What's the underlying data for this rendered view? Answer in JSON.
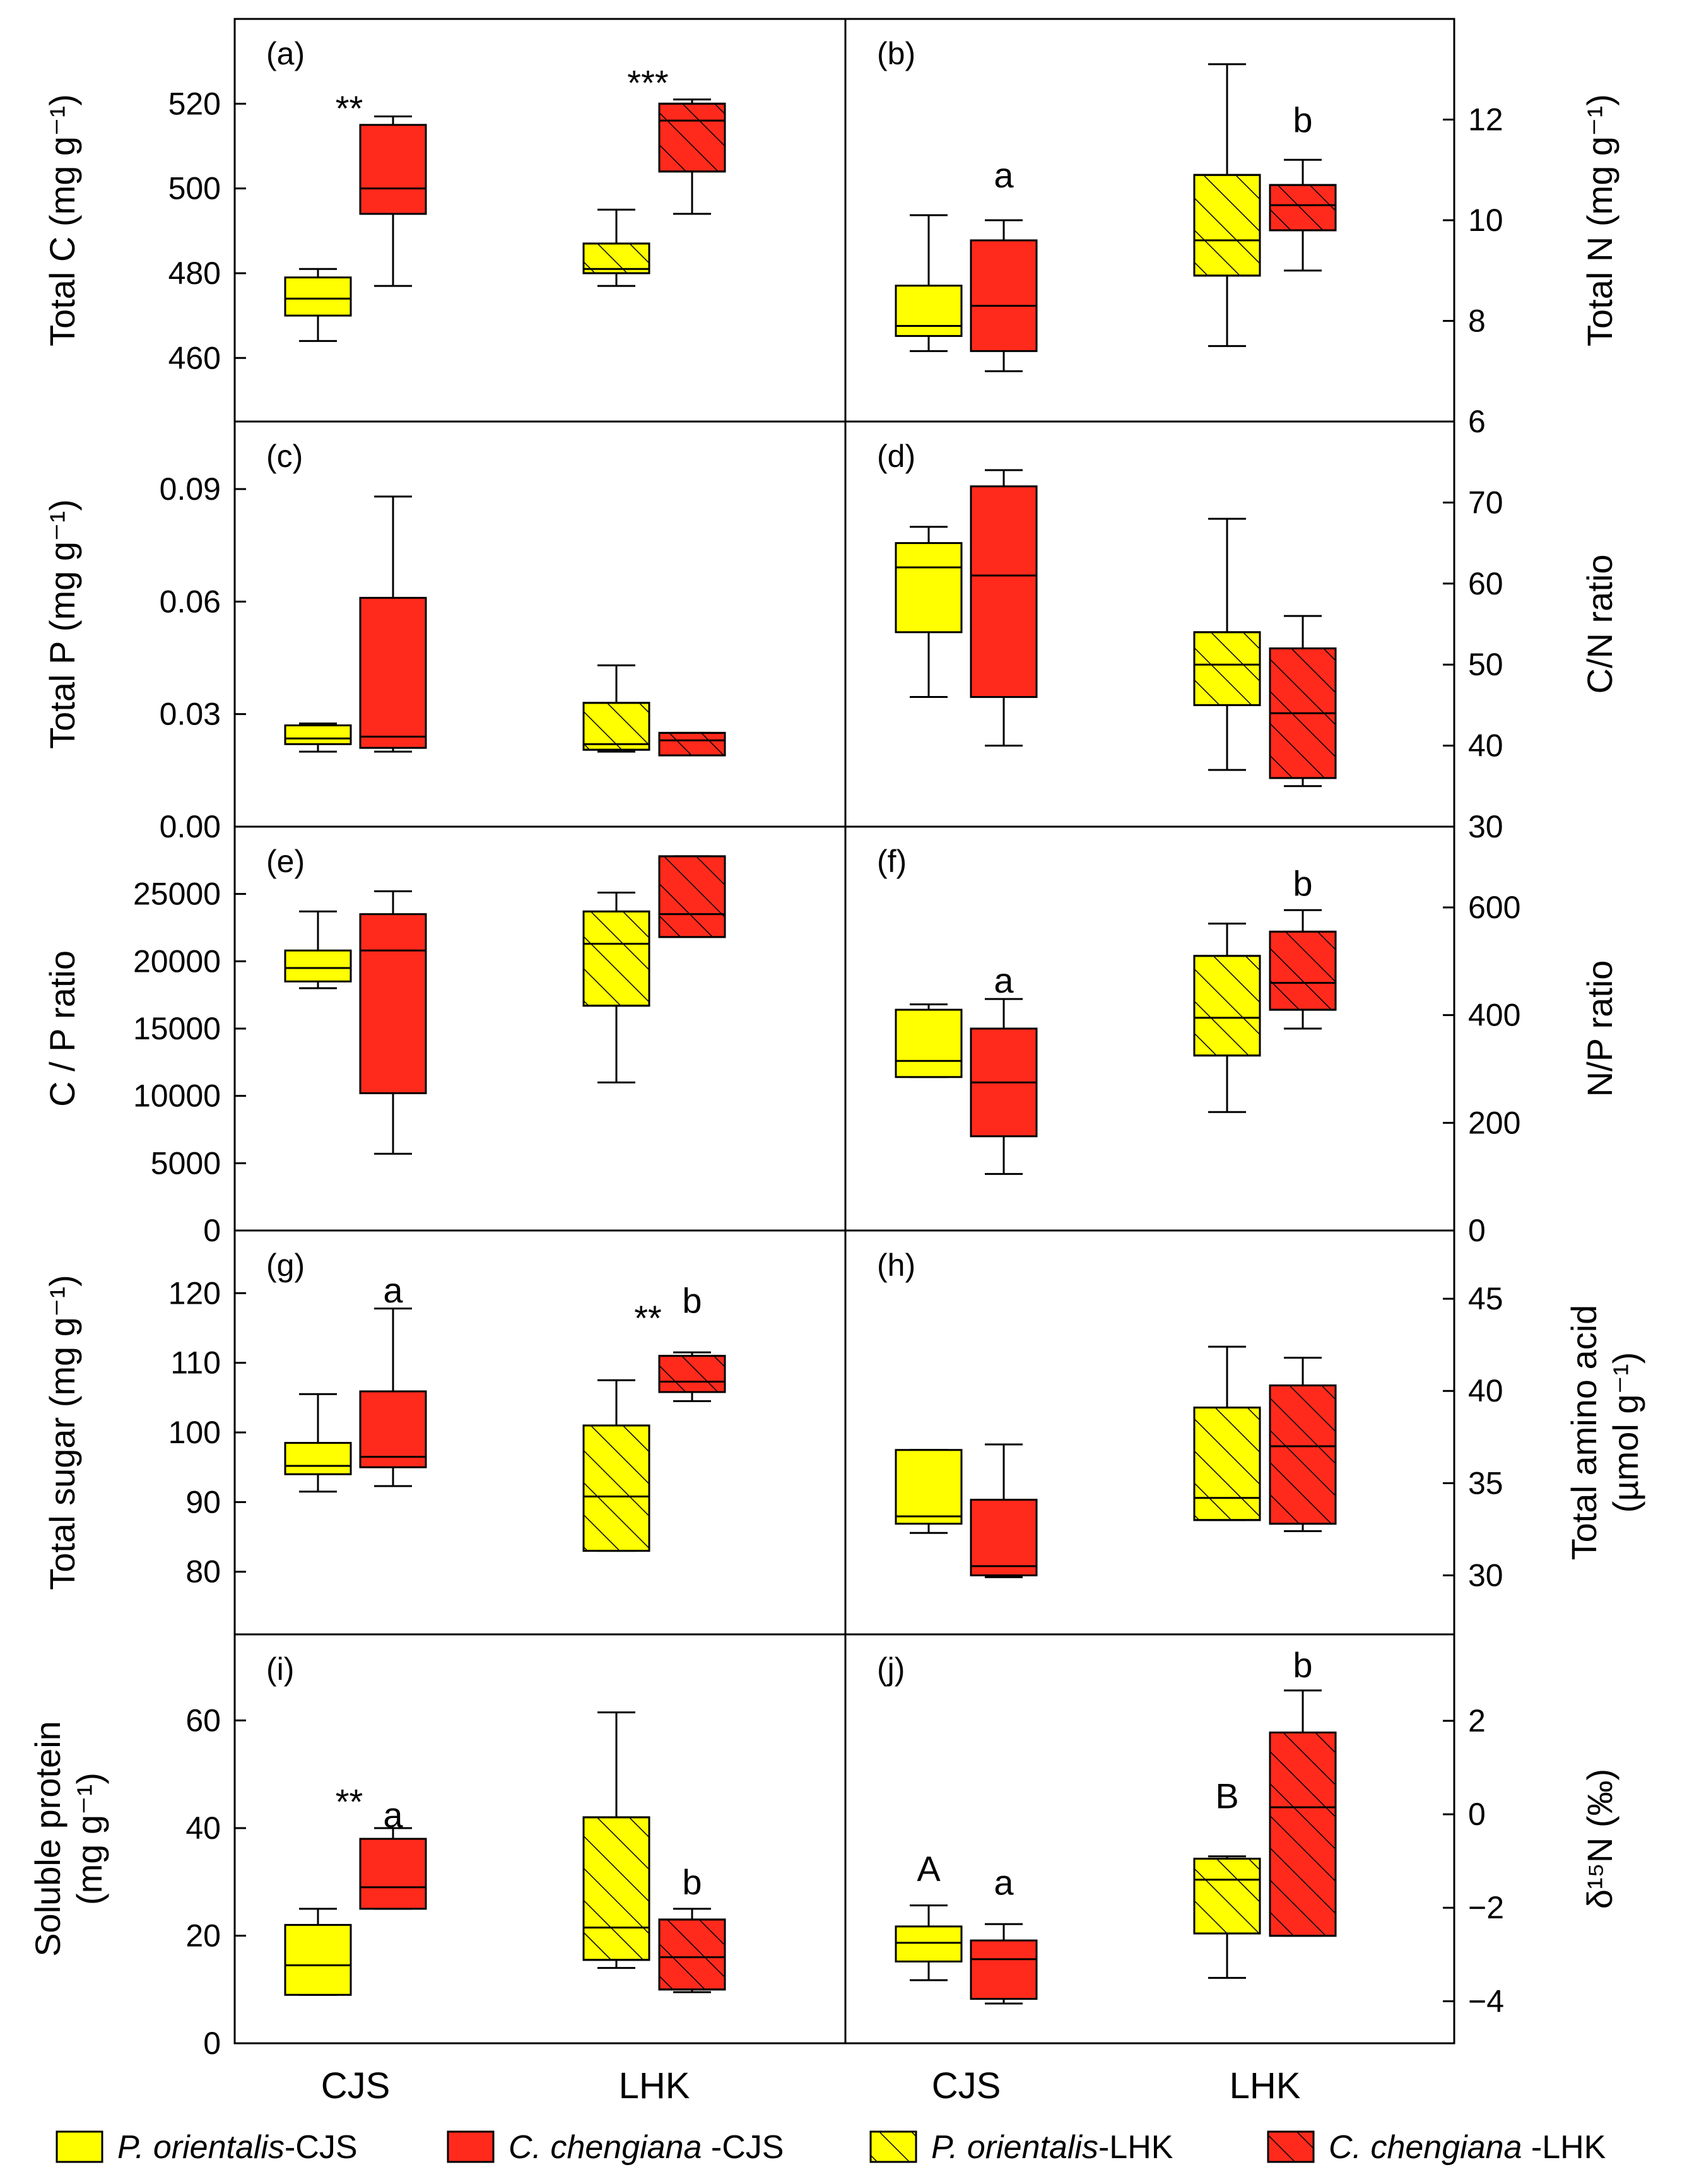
{
  "chart_data": {
    "type": "box",
    "groups": [
      "CJS",
      "LHK"
    ],
    "colors": {
      "P. orientalis": "#ffff00",
      "C. chengiana": "#ff2a1c",
      "outline": "#000000"
    },
    "legend": {
      "entries": [
        {
          "italic": "P. orientalis",
          "suffix": "-CJS",
          "color": "#ffff00",
          "hatched": false
        },
        {
          "italic": "C. chengiana ",
          "suffix": "-CJS",
          "color": "#ff2a1c",
          "hatched": false
        },
        {
          "italic": "P. orientalis",
          "suffix": "-LHK",
          "color": "#ffff00",
          "hatched": true
        },
        {
          "italic": "C. chengiana ",
          "suffix": "-LHK",
          "color": "#ff2a1c",
          "hatched": true
        }
      ]
    },
    "panels": [
      {
        "id": "a",
        "label": "(a)",
        "axis_side": "left",
        "ylabel_lines": [
          "Total C  (mg g⁻¹)"
        ],
        "ylim": [
          445,
          540
        ],
        "ticks": [
          460,
          480,
          500,
          520
        ],
        "boxes": [
          {
            "species": "P. orientalis",
            "site": "CJS",
            "min": 464,
            "q1": 470,
            "median": 474,
            "q3": 479,
            "max": 481
          },
          {
            "species": "C. chengiana",
            "site": "CJS",
            "min": 477,
            "q1": 494,
            "median": 500,
            "q3": 515,
            "max": 517
          },
          {
            "species": "P. orientalis",
            "site": "LHK",
            "min": 477,
            "q1": 480,
            "median": 481,
            "q3": 487,
            "max": 495
          },
          {
            "species": "C. chengiana",
            "site": "LHK",
            "min": 494,
            "q1": 504,
            "median": 516,
            "q3": 520,
            "max": 521
          }
        ],
        "annotations": [
          {
            "text": "**",
            "at": "pair",
            "site": "CJS",
            "value": 519
          },
          {
            "text": "***",
            "at": "pair",
            "site": "LHK",
            "value": 525
          }
        ]
      },
      {
        "id": "b",
        "label": "(b)",
        "axis_side": "right",
        "ylabel_lines": [
          "Total N  (mg g⁻¹)"
        ],
        "ylim": [
          6,
          14
        ],
        "ticks": [
          6,
          8,
          10,
          12
        ],
        "boxes": [
          {
            "species": "P. orientalis",
            "site": "CJS",
            "min": 7.4,
            "q1": 7.7,
            "median": 7.9,
            "q3": 8.7,
            "max": 10.1
          },
          {
            "species": "C. chengiana",
            "site": "CJS",
            "min": 7.0,
            "q1": 7.4,
            "median": 8.3,
            "q3": 9.6,
            "max": 10.0
          },
          {
            "species": "P. orientalis",
            "site": "LHK",
            "min": 7.5,
            "q1": 8.9,
            "median": 9.6,
            "q3": 10.9,
            "max": 13.1
          },
          {
            "species": "C. chengiana",
            "site": "LHK",
            "min": 9.0,
            "q1": 9.8,
            "median": 10.3,
            "q3": 10.7,
            "max": 11.2
          }
        ],
        "annotations": [
          {
            "text": "a",
            "at": "box",
            "index": 1,
            "value": 10.9
          },
          {
            "text": "b",
            "at": "box",
            "index": 3,
            "value": 12.0
          }
        ]
      },
      {
        "id": "c",
        "label": "(c)",
        "axis_side": "left",
        "ylabel_lines": [
          "Total P  (mg g⁻¹)"
        ],
        "ylim": [
          0,
          0.108
        ],
        "ticks": [
          0.0,
          0.03,
          0.06,
          0.09
        ],
        "tick_decimals": 2,
        "boxes": [
          {
            "species": "P. orientalis",
            "site": "CJS",
            "min": 0.02,
            "q1": 0.022,
            "median": 0.0235,
            "q3": 0.027,
            "max": 0.0275
          },
          {
            "species": "C. chengiana",
            "site": "CJS",
            "min": 0.02,
            "q1": 0.021,
            "median": 0.024,
            "q3": 0.061,
            "max": 0.088
          },
          {
            "species": "P. orientalis",
            "site": "LHK",
            "min": 0.02,
            "q1": 0.0205,
            "median": 0.022,
            "q3": 0.033,
            "max": 0.043
          },
          {
            "species": "C. chengiana",
            "site": "LHK",
            "min": 0.019,
            "q1": 0.019,
            "median": 0.023,
            "q3": 0.025,
            "max": 0.025
          }
        ],
        "annotations": []
      },
      {
        "id": "d",
        "label": "(d)",
        "axis_side": "right",
        "ylabel_lines": [
          "C/N ratio"
        ],
        "ylim": [
          30,
          80
        ],
        "ticks": [
          30,
          40,
          50,
          60,
          70
        ],
        "boxes": [
          {
            "species": "P. orientalis",
            "site": "CJS",
            "min": 46,
            "q1": 54,
            "median": 62,
            "q3": 65,
            "max": 67
          },
          {
            "species": "C. chengiana",
            "site": "CJS",
            "min": 40,
            "q1": 46,
            "median": 61,
            "q3": 72,
            "max": 74
          },
          {
            "species": "P. orientalis",
            "site": "LHK",
            "min": 37,
            "q1": 45,
            "median": 50,
            "q3": 54,
            "max": 68
          },
          {
            "species": "C. chengiana",
            "site": "LHK",
            "min": 35,
            "q1": 36,
            "median": 44,
            "q3": 52,
            "max": 56
          }
        ],
        "annotations": []
      },
      {
        "id": "e",
        "label": "(e)",
        "axis_side": "left",
        "ylabel_lines": [
          "C / P ratio"
        ],
        "ylim": [
          0,
          30000
        ],
        "ticks": [
          0,
          5000,
          10000,
          15000,
          20000,
          25000
        ],
        "boxes": [
          {
            "species": "P. orientalis",
            "site": "CJS",
            "min": 18000,
            "q1": 18500,
            "median": 19500,
            "q3": 20800,
            "max": 23700
          },
          {
            "species": "C. chengiana",
            "site": "CJS",
            "min": 5700,
            "q1": 10200,
            "median": 20800,
            "q3": 23500,
            "max": 25200
          },
          {
            "species": "P. orientalis",
            "site": "LHK",
            "min": 11000,
            "q1": 16700,
            "median": 21300,
            "q3": 23700,
            "max": 25100
          },
          {
            "species": "C. chengiana",
            "site": "LHK",
            "min": 21800,
            "q1": 21800,
            "median": 23500,
            "q3": 27800,
            "max": 27800
          }
        ],
        "annotations": []
      },
      {
        "id": "f",
        "label": "(f)",
        "axis_side": "right",
        "ylabel_lines": [
          "N/P ratio"
        ],
        "ylim": [
          0,
          750
        ],
        "ticks": [
          0,
          200,
          400,
          600
        ],
        "boxes": [
          {
            "species": "P. orientalis",
            "site": "CJS",
            "min": 285,
            "q1": 285,
            "median": 315,
            "q3": 410,
            "max": 420
          },
          {
            "species": "C. chengiana",
            "site": "CJS",
            "min": 105,
            "q1": 175,
            "median": 275,
            "q3": 375,
            "max": 430
          },
          {
            "species": "P. orientalis",
            "site": "LHK",
            "min": 220,
            "q1": 325,
            "median": 395,
            "q3": 510,
            "max": 570
          },
          {
            "species": "C. chengiana",
            "site": "LHK",
            "min": 375,
            "q1": 410,
            "median": 460,
            "q3": 555,
            "max": 595
          }
        ],
        "annotations": [
          {
            "text": "a",
            "at": "box",
            "index": 1,
            "value": 465
          },
          {
            "text": "b",
            "at": "box",
            "index": 3,
            "value": 645
          }
        ]
      },
      {
        "id": "g",
        "label": "(g)",
        "axis_side": "left",
        "ylabel_lines": [
          "Total sugar  (mg g⁻¹)"
        ],
        "ylim": [
          71,
          129
        ],
        "ticks": [
          80,
          90,
          100,
          110,
          120
        ],
        "boxes": [
          {
            "species": "P. orientalis",
            "site": "CJS",
            "min": 91.5,
            "q1": 94,
            "median": 95.2,
            "q3": 98.5,
            "max": 105.5
          },
          {
            "species": "C. chengiana",
            "site": "CJS",
            "min": 92.3,
            "q1": 95,
            "median": 96.5,
            "q3": 105.9,
            "max": 117.8
          },
          {
            "species": "P. orientalis",
            "site": "LHK",
            "min": 83,
            "q1": 83,
            "median": 90.8,
            "q3": 101,
            "max": 107.5
          },
          {
            "species": "C. chengiana",
            "site": "LHK",
            "min": 104.5,
            "q1": 105.8,
            "median": 107.3,
            "q3": 111,
            "max": 111.5
          }
        ],
        "annotations": [
          {
            "text": "a",
            "at": "box",
            "index": 1,
            "value": 120.5
          },
          {
            "text": "**",
            "at": "pair",
            "site": "LHK",
            "value": 116.5
          },
          {
            "text": "b",
            "at": "box",
            "index": 3,
            "value": 119
          }
        ]
      },
      {
        "id": "h",
        "label": "(h)",
        "axis_side": "right",
        "ylabel_lines": [
          "Total amino acid",
          "(µmol g⁻¹)"
        ],
        "ylim": [
          26.8,
          48.7
        ],
        "ticks": [
          30,
          35,
          40,
          45
        ],
        "boxes": [
          {
            "species": "P. orientalis",
            "site": "CJS",
            "min": 32.3,
            "q1": 32.8,
            "median": 33.2,
            "q3": 36.8,
            "max": 36.8
          },
          {
            "species": "C. chengiana",
            "site": "CJS",
            "min": 29.9,
            "q1": 30.0,
            "median": 30.5,
            "q3": 34.1,
            "max": 37.1
          },
          {
            "species": "P. orientalis",
            "site": "LHK",
            "min": 33,
            "q1": 33,
            "median": 34.2,
            "q3": 39.1,
            "max": 42.4
          },
          {
            "species": "C. chengiana",
            "site": "LHK",
            "min": 32.4,
            "q1": 32.8,
            "median": 37,
            "q3": 40.3,
            "max": 41.8
          }
        ],
        "annotations": []
      },
      {
        "id": "i",
        "label": "(i)",
        "axis_side": "left",
        "ylabel_lines": [
          "Soluble protein",
          "(mg g⁻¹)"
        ],
        "ylim": [
          0,
          76
        ],
        "ticks": [
          0,
          20,
          40,
          60
        ],
        "boxes": [
          {
            "species": "P. orientalis",
            "site": "CJS",
            "min": 9,
            "q1": 9,
            "median": 14.5,
            "q3": 22,
            "max": 25
          },
          {
            "species": "C. chengiana",
            "site": "CJS",
            "min": 25,
            "q1": 25,
            "median": 29,
            "q3": 38,
            "max": 40
          },
          {
            "species": "P. orientalis",
            "site": "LHK",
            "min": 14,
            "q1": 15.5,
            "median": 21.5,
            "q3": 42,
            "max": 61.5
          },
          {
            "species": "C. chengiana",
            "site": "LHK",
            "min": 9.5,
            "q1": 10,
            "median": 16,
            "q3": 23,
            "max": 25
          }
        ],
        "annotations": [
          {
            "text": "**",
            "at": "pair",
            "site": "CJS",
            "value": 45
          },
          {
            "text": "a",
            "at": "box",
            "index": 1,
            "value": 42.5
          },
          {
            "text": "b",
            "at": "box",
            "index": 3,
            "value": 30
          }
        ]
      },
      {
        "id": "j",
        "label": "(j)",
        "axis_side": "right",
        "ylabel_lines": [
          "δ¹⁵N (‰)"
        ],
        "ylim": [
          -4.9,
          3.85
        ],
        "ticks": [
          -4,
          -2,
          0,
          2
        ],
        "boxes": [
          {
            "species": "P. orientalis",
            "site": "CJS",
            "min": -3.55,
            "q1": -3.15,
            "median": -2.75,
            "q3": -2.4,
            "max": -1.95
          },
          {
            "species": "C. chengiana",
            "site": "CJS",
            "min": -4.05,
            "q1": -3.95,
            "median": -3.1,
            "q3": -2.7,
            "max": -2.35
          },
          {
            "species": "P. orientalis",
            "site": "LHK",
            "min": -3.5,
            "q1": -2.55,
            "median": -1.4,
            "q3": -0.95,
            "max": -0.9
          },
          {
            "species": "C. chengiana",
            "site": "LHK",
            "min": -2.6,
            "q1": -2.6,
            "median": 0.15,
            "q3": 1.75,
            "max": 2.65
          }
        ],
        "annotations": [
          {
            "text": "A",
            "at": "box",
            "index": 0,
            "value": -1.15
          },
          {
            "text": "a",
            "at": "box",
            "index": 1,
            "value": -1.45
          },
          {
            "text": "B",
            "at": "box",
            "index": 2,
            "value": 0.4
          },
          {
            "text": "b",
            "at": "box",
            "index": 3,
            "value": 3.2
          }
        ]
      }
    ]
  }
}
